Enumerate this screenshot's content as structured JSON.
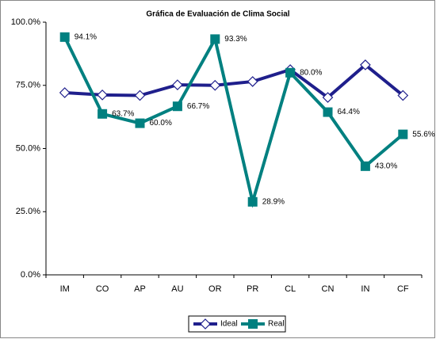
{
  "chart_data": {
    "type": "line",
    "title": "Gráfica de Evaluación de Clima Social",
    "categories": [
      "IM",
      "CO",
      "AP",
      "AU",
      "OR",
      "PR",
      "CL",
      "CN",
      "IN",
      "CF"
    ],
    "series": [
      {
        "name": "Ideal",
        "color": "#1f1f8c",
        "marker": "diamond",
        "values": [
          72.1,
          71.2,
          71.0,
          75.2,
          75.0,
          76.5,
          81.2,
          70.2,
          83.1,
          71.0
        ]
      },
      {
        "name": "Real",
        "color": "#008080",
        "marker": "square",
        "values": [
          94.1,
          63.7,
          60.0,
          66.7,
          93.3,
          28.9,
          80.0,
          64.4,
          43.0,
          55.6
        ],
        "value_labels": [
          "94.1%",
          "63.7%",
          "60.0%",
          "66.7%",
          "93.3%",
          "28.9%",
          "80.0%",
          "64.4%",
          "43.0%",
          "55.6%"
        ]
      }
    ],
    "ylim": [
      0,
      100
    ],
    "yticks": [
      {
        "value": 0,
        "label": "0.0%"
      },
      {
        "value": 25,
        "label": "25.0%"
      },
      {
        "value": 50,
        "label": "50.0%"
      },
      {
        "value": 75,
        "label": "75.0%"
      },
      {
        "value": 100,
        "label": "100.0%"
      }
    ],
    "legend": "bottom"
  }
}
